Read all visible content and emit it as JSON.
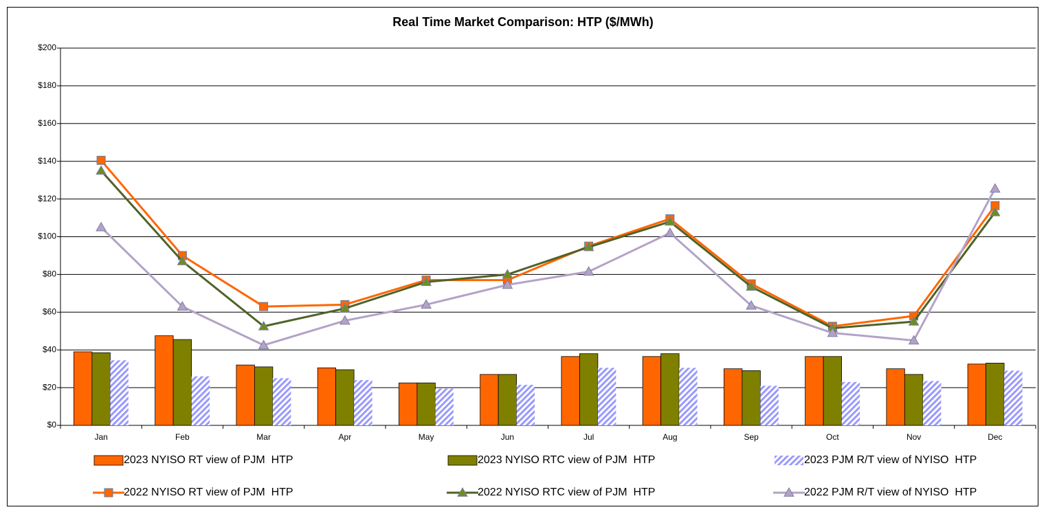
{
  "chart_data": {
    "type": "bar",
    "title": "Real Time Market Comparison: HTP ($/MWh)",
    "categories": [
      "Jan",
      "Feb",
      "Mar",
      "Apr",
      "May",
      "Jun",
      "Jul",
      "Aug",
      "Sep",
      "Oct",
      "Nov",
      "Dec"
    ],
    "ylim": [
      0,
      200
    ],
    "yticks": [
      {
        "value": 0,
        "label": "$0"
      },
      {
        "value": 20,
        "label": "$20"
      },
      {
        "value": 40,
        "label": "$40"
      },
      {
        "value": 60,
        "label": "$60"
      },
      {
        "value": 80,
        "label": "$80"
      },
      {
        "value": 100,
        "label": "$100"
      },
      {
        "value": 120,
        "label": "$120"
      },
      {
        "value": 140,
        "label": "$140"
      },
      {
        "value": 160,
        "label": "$160"
      },
      {
        "value": 180,
        "label": "$180"
      },
      {
        "value": 200,
        "label": "$200"
      }
    ],
    "grid": true,
    "series": [
      {
        "name": "2023 NYISO RT view of PJM  HTP",
        "type": "bar",
        "color": "#FF6600",
        "values": [
          39,
          47.5,
          32,
          30.5,
          22.5,
          27,
          36.5,
          36.5,
          30,
          36.5,
          30,
          32.5
        ]
      },
      {
        "name": "2023 NYISO RTC view of PJM  HTP",
        "type": "bar",
        "color": "#808000",
        "values": [
          38.5,
          45.5,
          31,
          29.5,
          22.5,
          27,
          38,
          38,
          29,
          36.5,
          27,
          33
        ]
      },
      {
        "name": "2023 PJM R/T view of NYISO  HTP",
        "type": "bar",
        "color": "#9999FF",
        "hatched": true,
        "values": [
          34.5,
          26,
          25,
          24,
          19.5,
          21.5,
          30.5,
          30.5,
          21,
          23,
          23.5,
          29
        ]
      },
      {
        "name": "2022 NYISO RT view of PJM  HTP",
        "type": "line",
        "color": "#FF6600",
        "marker": "square",
        "values": [
          140.5,
          90,
          63,
          64,
          77,
          77,
          95,
          109.5,
          75,
          52.5,
          58,
          116.5
        ]
      },
      {
        "name": "2022 NYISO RTC view of PJM  HTP",
        "type": "line",
        "color": "#4F6228",
        "marker": "triangle",
        "marker_color": "#6B8E23",
        "values": [
          135,
          87,
          52.5,
          62,
          76,
          80,
          94.5,
          108,
          73.5,
          51.5,
          55,
          113
        ]
      },
      {
        "name": "2022 PJM R/T view of NYISO  HTP",
        "type": "line",
        "color": "#B3A2C7",
        "marker": "triangle",
        "marker_color": "#B3A2C7",
        "values": [
          105,
          63,
          42.5,
          55.5,
          64,
          74.5,
          81.5,
          102,
          63.5,
          49,
          45,
          125.5
        ]
      }
    ]
  }
}
